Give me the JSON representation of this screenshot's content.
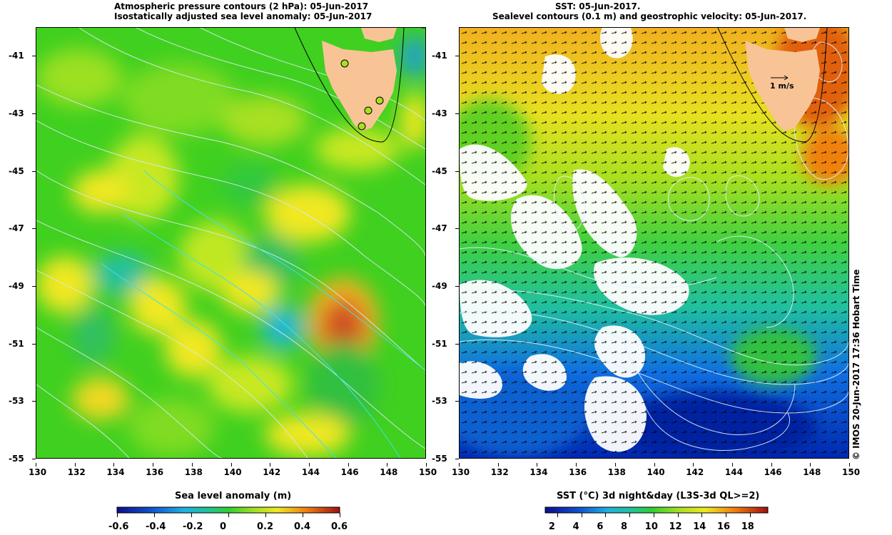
{
  "left_map": {
    "title_line1": "Atmospheric pressure contours (2 hPa): 05-Jun-2017",
    "title_line2": "Isostatically adjusted sea level anomaly: 05-Jun-2017",
    "x_ticks": [
      "130",
      "132",
      "134",
      "136",
      "138",
      "140",
      "142",
      "144",
      "146",
      "148",
      "150"
    ],
    "y_ticks": [
      "-41",
      "-43",
      "-45",
      "-47",
      "-49",
      "-51",
      "-53",
      "-55"
    ],
    "lon_range": [
      130,
      150
    ],
    "lat_range": [
      -55,
      -40
    ],
    "colorbar_title": "Sea level anomaly (m)",
    "colorbar_ticks": [
      "-0.6",
      "-0.4",
      "-0.2",
      "0",
      "0.2",
      "0.4",
      "0.6"
    ],
    "colorbar_range": [
      -0.6,
      0.6
    ],
    "land_color": "#f8c496",
    "tide_gauges": [
      {
        "lon": 145.9,
        "lat": -41.2
      },
      {
        "lon": 147.7,
        "lat": -42.5
      },
      {
        "lon": 147.2,
        "lat": -42.9
      },
      {
        "lon": 146.8,
        "lat": -43.5
      }
    ]
  },
  "right_map": {
    "title_line1": "SST: 05-Jun-2017.",
    "title_line2": "Sealevel contours (0.1 m) and geostrophic velocity: 05-Jun-2017.",
    "x_ticks": [
      "130",
      "132",
      "134",
      "136",
      "138",
      "140",
      "142",
      "144",
      "146",
      "148",
      "150"
    ],
    "y_ticks": [
      "-41",
      "-43",
      "-45",
      "-47",
      "-49",
      "-51",
      "-53",
      "-55"
    ],
    "lon_range": [
      130,
      150
    ],
    "lat_range": [
      -55,
      -40
    ],
    "velocity_label": "1 m/s",
    "colorbar_title": "SST (°C) 3d night&day (L3S-3d QL>=2)",
    "colorbar_ticks": [
      "2",
      "4",
      "6",
      "8",
      "10",
      "12",
      "14",
      "16",
      "18"
    ],
    "colorbar_range": [
      1,
      19.5
    ],
    "land_color": "#f8c496"
  },
  "credit": "© IMOS 20-Jun-2017 17:36 Hobart Time"
}
